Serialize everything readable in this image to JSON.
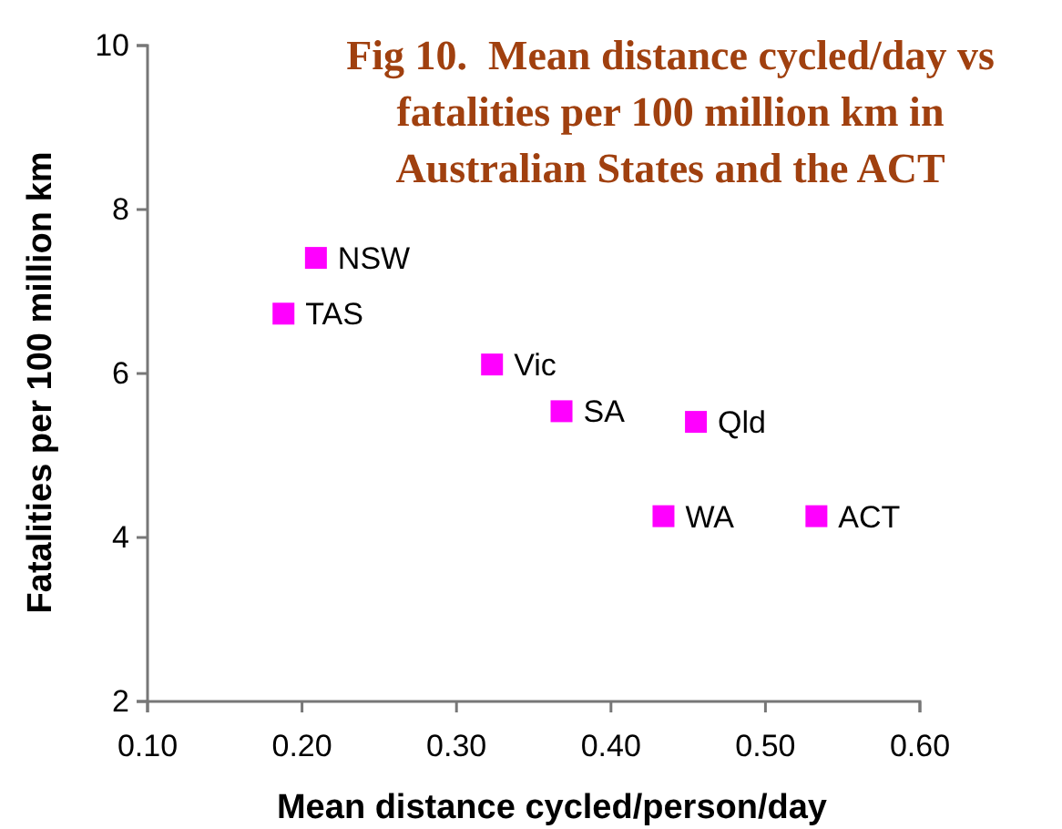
{
  "chart_data": {
    "type": "scatter",
    "title": "Fig 10.  Mean distance cycled/day vs fatalities per 100 million km in Australian States and the ACT",
    "xlabel": "Mean distance cycled/person/day",
    "ylabel": "Fatalities per 100 million km",
    "x": [
      0.209,
      0.188,
      0.323,
      0.368,
      0.455,
      0.434,
      0.533
    ],
    "values": [
      7.41,
      6.73,
      6.11,
      5.54,
      5.41,
      4.26,
      4.26
    ],
    "color": "#ff00ff",
    "marker": "square",
    "annotations": [
      {
        "text": "NSW",
        "x": 0.209,
        "y": 7.41
      },
      {
        "text": "TAS",
        "x": 0.188,
        "y": 6.73
      },
      {
        "text": "Vic",
        "x": 0.323,
        "y": 6.11
      },
      {
        "text": "SA",
        "x": 0.368,
        "y": 5.54
      },
      {
        "text": "Qld",
        "x": 0.455,
        "y": 5.41
      },
      {
        "text": "WA",
        "x": 0.434,
        "y": 4.26
      },
      {
        "text": "ACT",
        "x": 0.533,
        "y": 4.26
      }
    ],
    "xlim": [
      0.1,
      0.6
    ],
    "xticks": [
      {
        "value": 0.1,
        "label": "0.10"
      },
      {
        "value": 0.2,
        "label": "0.20"
      },
      {
        "value": 0.3,
        "label": "0.30"
      },
      {
        "value": 0.4,
        "label": "0.40"
      },
      {
        "value": 0.5,
        "label": "0.50"
      },
      {
        "value": 0.6,
        "label": "0.60"
      }
    ],
    "ylim": [
      2,
      10
    ],
    "yticks": [
      2,
      4,
      6,
      8,
      10
    ],
    "grid": false
  }
}
